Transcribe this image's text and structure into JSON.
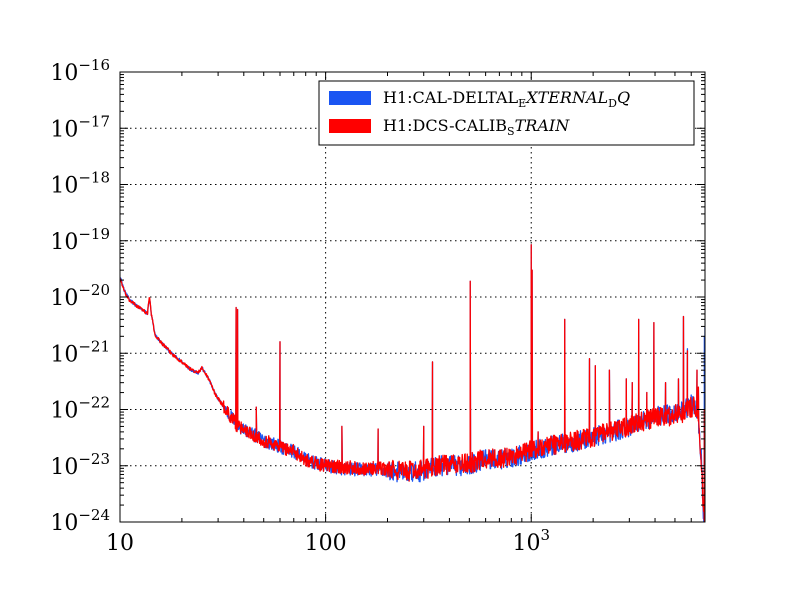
{
  "chart_data": {
    "type": "line",
    "title": "",
    "xlabel": "",
    "ylabel": "",
    "xscale": "log",
    "yscale": "log",
    "xlim": [
      10,
      7000
    ],
    "ylim": [
      1e-24,
      1e-16
    ],
    "grid": true,
    "legend_position": "top-right",
    "x_ticks": [
      {
        "value": 10,
        "base": "10",
        "exp": ""
      },
      {
        "value": 100,
        "base": "100",
        "exp": ""
      },
      {
        "value": 1000,
        "base": "10",
        "exp": "3"
      }
    ],
    "y_ticks": [
      {
        "value": 1e-24,
        "base": "10",
        "exp": "−24"
      },
      {
        "value": 1e-23,
        "base": "10",
        "exp": "−23"
      },
      {
        "value": 1e-22,
        "base": "10",
        "exp": "−22"
      },
      {
        "value": 1e-21,
        "base": "10",
        "exp": "−21"
      },
      {
        "value": 1e-20,
        "base": "10",
        "exp": "−20"
      },
      {
        "value": 1e-19,
        "base": "10",
        "exp": "−19"
      },
      {
        "value": 1e-18,
        "base": "10",
        "exp": "−18"
      },
      {
        "value": 1e-17,
        "base": "10",
        "exp": "−17"
      },
      {
        "value": 1e-16,
        "base": "10",
        "exp": "−16"
      }
    ],
    "series": [
      {
        "name": "H1:CAL-DELTAL_EXTERNAL_DQ",
        "legend_plain": "H1:CAL-DELTAL",
        "legend_sub1": "E",
        "legend_italic": "XTERNAL",
        "legend_sub2": "D",
        "legend_italic2": "Q",
        "color": "#1a55f2",
        "baseline": [
          [
            10,
            2.4e-20
          ],
          [
            10.5,
            1.3e-20
          ],
          [
            11,
            9.5e-21
          ],
          [
            12,
            7e-21
          ],
          [
            13,
            5.8e-21
          ],
          [
            13.6,
            5e-21
          ],
          [
            13.9,
            1e-20
          ],
          [
            14.2,
            5e-21
          ],
          [
            14.8,
            2.1e-21
          ],
          [
            16,
            1.5e-21
          ],
          [
            18,
            9.5e-22
          ],
          [
            20,
            7e-22
          ],
          [
            22,
            5.2e-22
          ],
          [
            24,
            4.5e-22
          ],
          [
            25,
            5.5e-22
          ],
          [
            27,
            3.5e-22
          ],
          [
            29,
            1.9e-22
          ],
          [
            32,
            1.1e-22
          ],
          [
            34,
            8e-23
          ],
          [
            36,
            6.5e-23
          ],
          [
            37,
            5e-23
          ],
          [
            40,
            4.5e-23
          ],
          [
            45,
            3.5e-23
          ],
          [
            50,
            2.8e-23
          ],
          [
            55,
            2.5e-23
          ],
          [
            60,
            2.2e-23
          ],
          [
            70,
            1.8e-23
          ],
          [
            80,
            1.3e-23
          ],
          [
            90,
            1.1e-23
          ],
          [
            100,
            1e-23
          ],
          [
            120,
            9e-24
          ],
          [
            150,
            8.5e-24
          ],
          [
            180,
            8.5e-24
          ],
          [
            200,
            8e-24
          ],
          [
            250,
            7.5e-24
          ],
          [
            300,
            8e-24
          ],
          [
            350,
            1e-23
          ],
          [
            400,
            1e-23
          ],
          [
            450,
            1e-23
          ],
          [
            500,
            1.05e-23
          ],
          [
            600,
            1.3e-23
          ],
          [
            700,
            1.3e-23
          ],
          [
            800,
            1.4e-23
          ],
          [
            900,
            1.6e-23
          ],
          [
            1000,
            1.8e-23
          ],
          [
            1200,
            2.2e-23
          ],
          [
            1500,
            2.5e-23
          ],
          [
            2000,
            3.2e-23
          ],
          [
            2500,
            4e-23
          ],
          [
            3000,
            5e-23
          ],
          [
            3500,
            6.5e-23
          ],
          [
            4000,
            7.5e-23
          ],
          [
            4500,
            8e-23
          ],
          [
            5000,
            8.5e-23
          ],
          [
            5500,
            1e-22
          ],
          [
            6000,
            1.2e-22
          ],
          [
            6300,
            1.2e-22
          ],
          [
            6500,
            7e-23
          ],
          [
            6700,
            1.5e-23
          ],
          [
            6850,
            2e-24
          ],
          [
            6950,
            1e-24
          ]
        ],
        "peaks": [
          [
            36.7,
            6.5e-21
          ],
          [
            37.3,
            6e-21
          ],
          [
            46,
            1.1e-22
          ],
          [
            60,
            1.6e-21
          ],
          [
            120,
            5e-23
          ],
          [
            180,
            4.5e-23
          ],
          [
            300,
            5e-23
          ],
          [
            331,
            7e-22
          ],
          [
            505,
            1.9e-20
          ],
          [
            1000,
            8.5e-20
          ],
          [
            1010,
            3e-20
          ],
          [
            1080,
            4e-23
          ],
          [
            1455,
            4e-21
          ],
          [
            1920,
            8e-22
          ],
          [
            2050,
            6e-22
          ],
          [
            2400,
            5e-22
          ],
          [
            2900,
            3.5e-22
          ],
          [
            3100,
            3e-22
          ],
          [
            3330,
            4e-21
          ],
          [
            3650,
            2e-22
          ],
          [
            3950,
            3.5e-21
          ],
          [
            4500,
            3e-22
          ],
          [
            5200,
            3.5e-22
          ],
          [
            5500,
            4.5e-21
          ],
          [
            5750,
            1.2e-21
          ],
          [
            6400,
            5e-22
          ],
          [
            6500,
            2.5e-22
          ],
          [
            6950,
            2e-21
          ],
          [
            7000,
            3e-21
          ]
        ]
      },
      {
        "name": "H1:DCS-CALIB_STRAIN",
        "legend_plain": "H1:DCS-CALIB",
        "legend_sub1": "S",
        "legend_italic": "TRAIN",
        "legend_sub2": "",
        "legend_italic2": "",
        "color": "#ff0000",
        "baseline": [
          [
            10,
            2.2e-20
          ],
          [
            10.5,
            1.25e-20
          ],
          [
            11,
            9e-21
          ],
          [
            12,
            7e-21
          ],
          [
            13,
            5.8e-21
          ],
          [
            13.6,
            5e-21
          ],
          [
            13.9,
            1.05e-20
          ],
          [
            14.2,
            5e-21
          ],
          [
            14.8,
            2.1e-21
          ],
          [
            16,
            1.5e-21
          ],
          [
            18,
            9.5e-22
          ],
          [
            20,
            7e-22
          ],
          [
            22,
            5.2e-22
          ],
          [
            24,
            4.5e-22
          ],
          [
            25,
            5.5e-22
          ],
          [
            27,
            3.5e-22
          ],
          [
            29,
            1.9e-22
          ],
          [
            32,
            1.1e-22
          ],
          [
            34,
            8e-23
          ],
          [
            36,
            6.5e-23
          ],
          [
            37,
            5e-23
          ],
          [
            40,
            4.5e-23
          ],
          [
            45,
            3.5e-23
          ],
          [
            50,
            2.8e-23
          ],
          [
            55,
            2.5e-23
          ],
          [
            60,
            2.2e-23
          ],
          [
            70,
            1.8e-23
          ],
          [
            80,
            1.3e-23
          ],
          [
            90,
            1.1e-23
          ],
          [
            100,
            1e-23
          ],
          [
            120,
            9.5e-24
          ],
          [
            150,
            9e-24
          ],
          [
            180,
            9e-24
          ],
          [
            200,
            8.5e-24
          ],
          [
            250,
            8e-24
          ],
          [
            300,
            8.5e-24
          ],
          [
            350,
            1.05e-23
          ],
          [
            400,
            1.05e-23
          ],
          [
            450,
            1.05e-23
          ],
          [
            500,
            1.1e-23
          ],
          [
            600,
            1.35e-23
          ],
          [
            700,
            1.35e-23
          ],
          [
            800,
            1.45e-23
          ],
          [
            900,
            1.65e-23
          ],
          [
            1000,
            1.9e-23
          ],
          [
            1200,
            2.3e-23
          ],
          [
            1500,
            2.6e-23
          ],
          [
            2000,
            3.3e-23
          ],
          [
            2500,
            4.1e-23
          ],
          [
            3000,
            5e-23
          ],
          [
            3500,
            6.3e-23
          ],
          [
            4000,
            7e-23
          ],
          [
            4500,
            7.5e-23
          ],
          [
            5000,
            8e-23
          ],
          [
            5500,
            9e-23
          ],
          [
            6000,
            1.1e-22
          ],
          [
            6300,
            1.1e-22
          ],
          [
            6500,
            6.5e-23
          ],
          [
            6700,
            1.4e-23
          ],
          [
            6850,
            2e-24
          ],
          [
            6950,
            1e-24
          ]
        ],
        "peaks": [
          [
            36.7,
            6.5e-21
          ],
          [
            37.3,
            6e-21
          ],
          [
            46,
            1.1e-22
          ],
          [
            60,
            1.6e-21
          ],
          [
            120,
            5e-23
          ],
          [
            180,
            4.5e-23
          ],
          [
            300,
            5e-23
          ],
          [
            331,
            7e-22
          ],
          [
            505,
            1.9e-20
          ],
          [
            1000,
            8.5e-20
          ],
          [
            1010,
            3e-20
          ],
          [
            1080,
            4e-23
          ],
          [
            1455,
            4e-21
          ],
          [
            1920,
            8e-22
          ],
          [
            2050,
            6e-22
          ],
          [
            2400,
            5e-22
          ],
          [
            2900,
            3.5e-22
          ],
          [
            3100,
            3e-22
          ],
          [
            3330,
            4e-21
          ],
          [
            3650,
            2e-22
          ],
          [
            3950,
            3.5e-21
          ],
          [
            4500,
            3e-22
          ],
          [
            5200,
            3.5e-22
          ],
          [
            5500,
            4.5e-21
          ],
          [
            5750,
            1.1e-21
          ],
          [
            6400,
            5e-22
          ],
          [
            6500,
            2.5e-22
          ],
          [
            6950,
            1e-22
          ],
          [
            7000,
            1e-22
          ]
        ]
      }
    ]
  }
}
